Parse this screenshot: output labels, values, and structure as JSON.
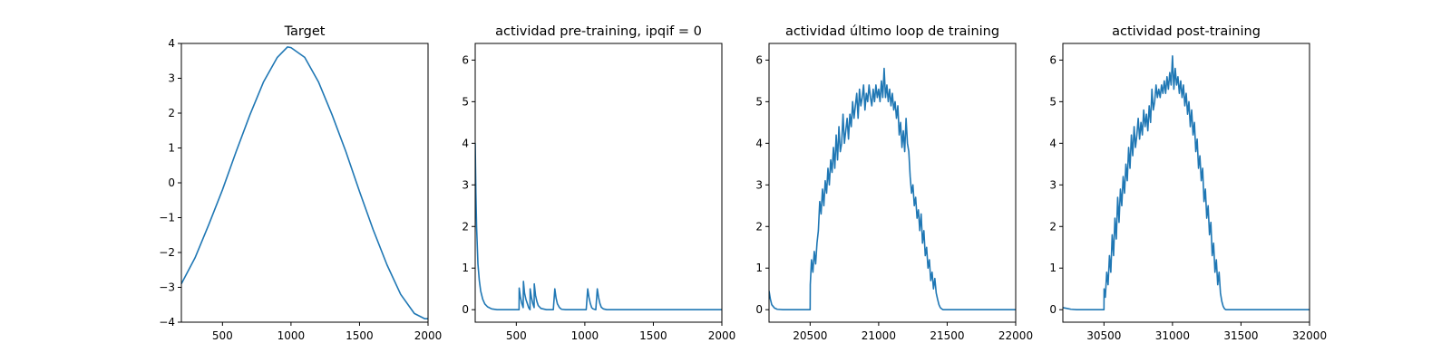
{
  "chart_data": [
    {
      "type": "line",
      "title": "Target",
      "xlabel": "",
      "ylabel": "",
      "xlim": [
        200,
        2000
      ],
      "ylim": [
        -4,
        4
      ],
      "xticks": [
        500,
        1000,
        1500,
        2000
      ],
      "yticks": [
        -4,
        -3,
        -2,
        -1,
        0,
        1,
        2,
        3,
        4
      ],
      "grid": false,
      "series": [
        {
          "name": "target",
          "x": [
            200,
            300,
            400,
            500,
            600,
            700,
            800,
            900,
            975,
            1000,
            1100,
            1200,
            1300,
            1400,
            1500,
            1600,
            1700,
            1800,
            1900,
            1975,
            2000
          ],
          "y": [
            -2.9,
            -2.15,
            -1.2,
            -0.2,
            0.9,
            1.95,
            2.9,
            3.6,
            3.9,
            3.88,
            3.6,
            2.9,
            1.95,
            0.9,
            -0.25,
            -1.35,
            -2.35,
            -3.2,
            -3.75,
            -3.9,
            -3.9
          ]
        }
      ]
    },
    {
      "type": "line",
      "title": "actividad pre-training, ipqif = 0",
      "xlabel": "",
      "ylabel": "",
      "xlim": [
        200,
        2000
      ],
      "ylim": [
        -0.3,
        6.4
      ],
      "xticks": [
        500,
        1000,
        1500,
        2000
      ],
      "yticks": [
        0,
        1,
        2,
        3,
        4,
        5,
        6
      ],
      "grid": false,
      "series": [
        {
          "name": "actividad",
          "x": [
            200,
            205,
            210,
            220,
            230,
            240,
            255,
            270,
            290,
            320,
            360,
            400,
            450,
            500,
            520,
            521,
            530,
            540,
            550,
            552,
            560,
            570,
            580,
            590,
            600,
            601,
            610,
            620,
            630,
            631,
            640,
            650,
            660,
            680,
            720,
            770,
            781,
            790,
            800,
            815,
            830,
            860,
            900,
            960,
            1010,
            1021,
            1030,
            1040,
            1050,
            1060,
            1080,
            1091,
            1100,
            1110,
            1120,
            1135,
            1160,
            1200,
            1300,
            1500,
            1700,
            2000
          ],
          "y": [
            4.0,
            2.8,
            2.0,
            1.1,
            0.7,
            0.45,
            0.25,
            0.14,
            0.07,
            0.02,
            0.0,
            0.0,
            0.0,
            0.0,
            0.0,
            0.52,
            0.3,
            0.15,
            0.05,
            0.68,
            0.4,
            0.25,
            0.15,
            0.05,
            0.0,
            0.5,
            0.3,
            0.15,
            0.05,
            0.62,
            0.35,
            0.2,
            0.1,
            0.03,
            0.0,
            0.0,
            0.5,
            0.28,
            0.14,
            0.05,
            0.01,
            0.0,
            0.0,
            0.0,
            0.0,
            0.5,
            0.3,
            0.15,
            0.05,
            0.02,
            0.0,
            0.5,
            0.3,
            0.15,
            0.06,
            0.02,
            0.0,
            0.0,
            0.0,
            0.0,
            0.0,
            0.0
          ]
        }
      ]
    },
    {
      "type": "line",
      "title": "actividad último loop de training",
      "xlabel": "",
      "ylabel": "",
      "xlim": [
        20200,
        22000
      ],
      "ylim": [
        -0.3,
        6.4
      ],
      "xticks": [
        20500,
        21000,
        21500,
        22000
      ],
      "yticks": [
        0,
        1,
        2,
        3,
        4,
        5,
        6
      ],
      "grid": false,
      "series": [
        {
          "name": "actividad",
          "x": [
            20200,
            20210,
            20220,
            20240,
            20260,
            20300,
            20400,
            20500,
            20501,
            20510,
            20520,
            20530,
            20540,
            20550,
            20560,
            20570,
            20580,
            20590,
            20600,
            20610,
            20620,
            20630,
            20640,
            20650,
            20660,
            20670,
            20680,
            20690,
            20700,
            20710,
            20720,
            20730,
            20740,
            20750,
            20760,
            20770,
            20780,
            20790,
            20800,
            20810,
            20820,
            20830,
            20840,
            20850,
            20860,
            20870,
            20880,
            20890,
            20900,
            20910,
            20920,
            20930,
            20940,
            20950,
            20960,
            20970,
            20980,
            20990,
            21000,
            21010,
            21020,
            21030,
            21040,
            21050,
            21060,
            21070,
            21080,
            21090,
            21100,
            21110,
            21120,
            21130,
            21140,
            21150,
            21160,
            21170,
            21180,
            21190,
            21200,
            21210,
            21220,
            21230,
            21240,
            21250,
            21260,
            21270,
            21280,
            21290,
            21300,
            21310,
            21320,
            21330,
            21340,
            21350,
            21360,
            21370,
            21380,
            21390,
            21400,
            21410,
            21420,
            21430,
            21440,
            21450,
            21460,
            21470,
            21480,
            21490,
            21500,
            21520,
            21550,
            21600,
            21700,
            21800,
            22000
          ],
          "y": [
            0.45,
            0.25,
            0.12,
            0.04,
            0.01,
            0.0,
            0.0,
            0.0,
            0.6,
            1.2,
            0.9,
            1.4,
            1.1,
            1.6,
            1.9,
            2.6,
            2.3,
            2.9,
            2.5,
            3.1,
            2.8,
            3.4,
            3.0,
            3.6,
            3.3,
            3.9,
            3.4,
            4.2,
            3.6,
            4.4,
            3.8,
            4.0,
            4.7,
            4.0,
            4.3,
            4.6,
            4.1,
            4.7,
            4.4,
            5.0,
            4.6,
            4.9,
            5.2,
            4.6,
            5.3,
            4.9,
            5.1,
            5.4,
            4.8,
            5.2,
            5.0,
            5.4,
            5.1,
            4.9,
            5.3,
            5.0,
            5.4,
            5.1,
            5.3,
            5.0,
            5.5,
            5.1,
            5.8,
            5.1,
            5.4,
            5.0,
            5.3,
            4.9,
            5.2,
            4.8,
            5.0,
            4.6,
            4.9,
            4.2,
            4.5,
            3.9,
            4.3,
            3.8,
            4.6,
            4.0,
            3.8,
            3.2,
            2.8,
            3.0,
            2.5,
            2.7,
            2.2,
            2.4,
            1.9,
            2.3,
            1.6,
            1.9,
            1.3,
            1.5,
            1.0,
            1.2,
            0.7,
            0.9,
            0.5,
            0.75,
            0.4,
            0.25,
            0.12,
            0.05,
            0.02,
            0.0,
            0.0,
            0.0,
            0.0,
            0.0,
            0.0,
            0.0,
            0.0,
            0.0,
            0.0
          ]
        }
      ]
    },
    {
      "type": "line",
      "title": "actividad post-training",
      "xlabel": "",
      "ylabel": "",
      "xlim": [
        30200,
        32000
      ],
      "ylim": [
        -0.3,
        6.4
      ],
      "xticks": [
        30500,
        31000,
        31500,
        32000
      ],
      "yticks": [
        0,
        1,
        2,
        3,
        4,
        5,
        6
      ],
      "grid": false,
      "series": [
        {
          "name": "actividad",
          "x": [
            30200,
            30230,
            30260,
            30300,
            30400,
            30500,
            30501,
            30510,
            30520,
            30530,
            30540,
            30550,
            30560,
            30570,
            30580,
            30590,
            30600,
            30610,
            30620,
            30630,
            30640,
            30650,
            30660,
            30670,
            30680,
            30690,
            30700,
            30710,
            30720,
            30730,
            30740,
            30750,
            30760,
            30770,
            30780,
            30790,
            30800,
            30810,
            30820,
            30830,
            30840,
            30850,
            30860,
            30870,
            30880,
            30890,
            30900,
            30910,
            30920,
            30930,
            30940,
            30950,
            30960,
            30970,
            30980,
            30990,
            31000,
            31010,
            31020,
            31030,
            31040,
            31050,
            31060,
            31070,
            31080,
            31090,
            31100,
            31110,
            31120,
            31130,
            31140,
            31150,
            31160,
            31170,
            31180,
            31190,
            31200,
            31210,
            31220,
            31230,
            31240,
            31250,
            31260,
            31270,
            31280,
            31290,
            31300,
            31310,
            31320,
            31330,
            31340,
            31350,
            31360,
            31370,
            31380,
            31390,
            31400,
            31410,
            31420,
            31440,
            31480,
            31550,
            31700,
            31850,
            32000
          ],
          "y": [
            0.05,
            0.03,
            0.01,
            0.0,
            0.0,
            0.0,
            0.5,
            0.3,
            0.9,
            0.6,
            1.3,
            0.9,
            1.8,
            1.3,
            2.2,
            1.7,
            2.7,
            2.1,
            2.9,
            2.5,
            3.2,
            2.8,
            3.5,
            3.1,
            3.9,
            3.4,
            4.2,
            3.7,
            4.4,
            3.9,
            4.2,
            4.6,
            4.1,
            4.5,
            4.2,
            4.8,
            4.4,
            4.7,
            4.3,
            4.9,
            4.5,
            5.3,
            4.8,
            5.0,
            5.4,
            5.1,
            5.3,
            5.1,
            5.4,
            5.2,
            5.5,
            5.2,
            5.6,
            5.3,
            5.7,
            5.4,
            6.1,
            5.3,
            5.8,
            5.4,
            5.6,
            5.2,
            5.5,
            5.1,
            5.4,
            4.9,
            5.2,
            4.7,
            5.0,
            4.4,
            4.8,
            4.2,
            4.5,
            3.8,
            4.1,
            3.4,
            3.7,
            3.1,
            3.4,
            2.6,
            2.9,
            2.2,
            2.5,
            1.8,
            2.1,
            1.3,
            1.6,
            0.9,
            1.2,
            0.6,
            0.9,
            0.4,
            0.2,
            0.08,
            0.02,
            0.0,
            0.0,
            0.0,
            0.0,
            0.0,
            0.0,
            0.0,
            0.0,
            0.0,
            0.0
          ]
        }
      ]
    }
  ],
  "colors": {
    "line": "#1f77b4",
    "axes": "#000000",
    "background": "#ffffff"
  }
}
